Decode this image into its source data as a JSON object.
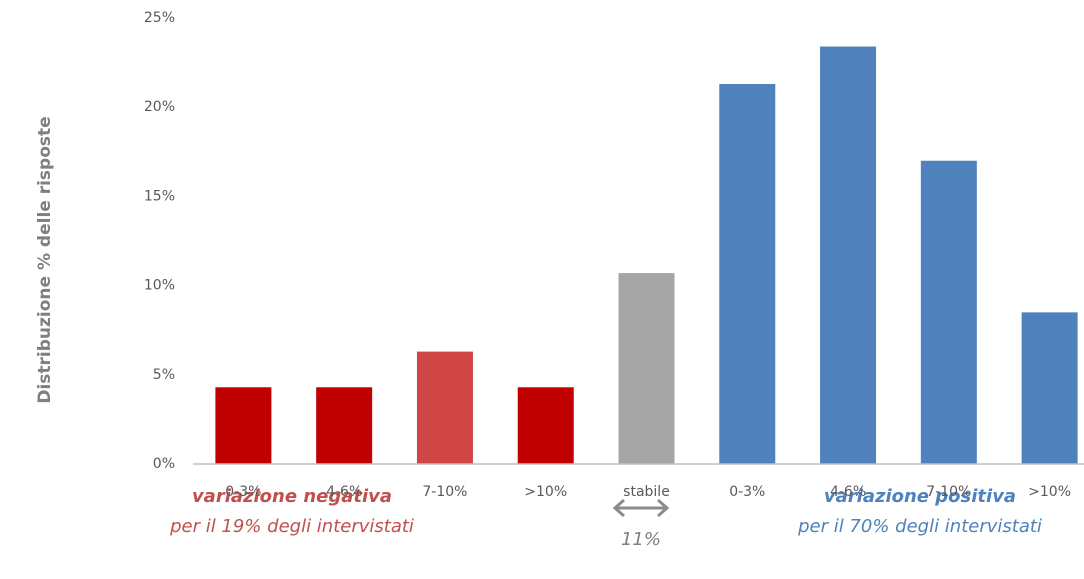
{
  "chart_data": {
    "type": "bar",
    "y_axis_label": "Distribuzione % delle risposte",
    "categories": [
      "0-3%",
      "4-6%",
      "7-10%",
      ">10%",
      "stabile",
      "0-3%",
      "4-6%",
      "7-10%",
      ">10%"
    ],
    "values": [
      4.3,
      4.3,
      6.3,
      4.3,
      10.7,
      21.3,
      23.4,
      17.0,
      8.5
    ],
    "colors": [
      "#c00000",
      "#c00000",
      "#d04545",
      "#c00000",
      "#a5a5a5",
      "#4f81bd",
      "#4f81bd",
      "#4f81bd",
      "#4f81bd"
    ],
    "ylim": [
      0,
      25
    ],
    "yticks": [
      {
        "value": 0,
        "label": "0%"
      },
      {
        "value": 5,
        "label": "5%"
      },
      {
        "value": 10,
        "label": "10%"
      },
      {
        "value": 15,
        "label": "15%"
      },
      {
        "value": 20,
        "label": "20%"
      },
      {
        "value": 25,
        "label": "25%"
      }
    ],
    "grid": false,
    "annotations": {
      "negative_title": "variazione negativa",
      "negative_note": "per il 19% degli intervistati",
      "stable_note": "11%",
      "positive_title": "variazione positiva",
      "positive_note": "per il 70% degli intervistati"
    }
  }
}
